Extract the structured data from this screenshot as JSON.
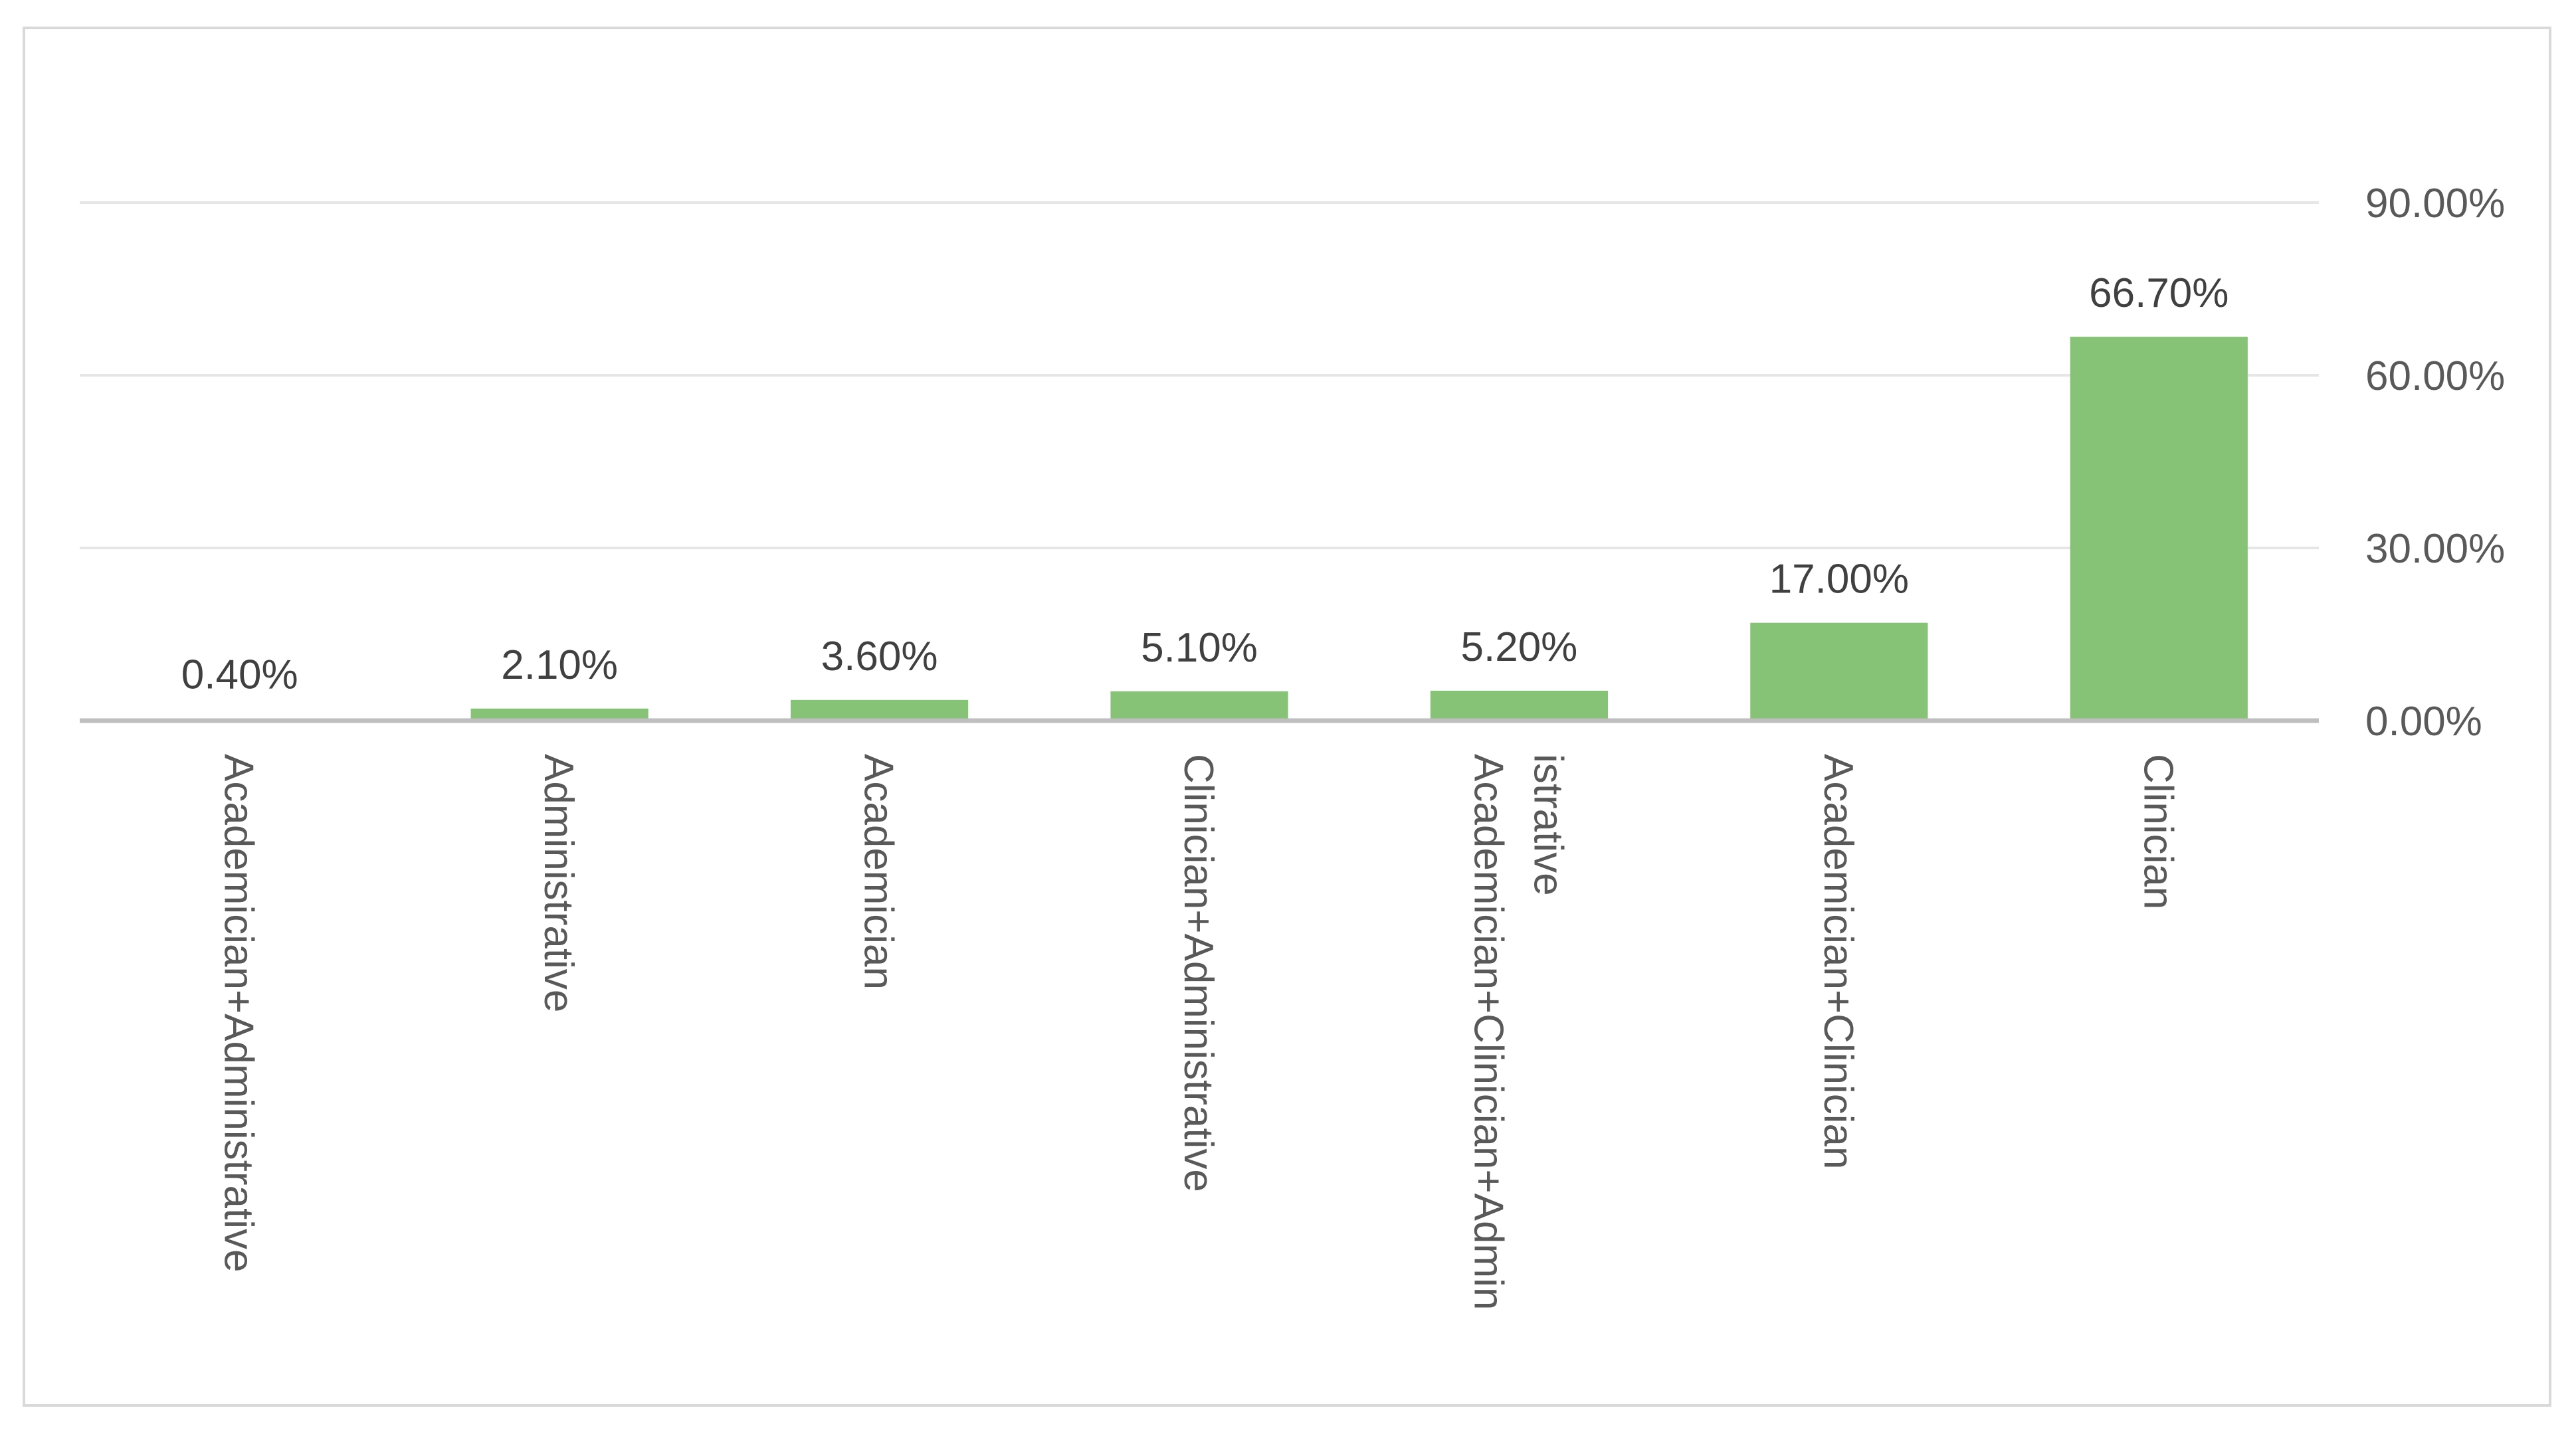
{
  "chart_data": {
    "type": "bar",
    "title": "",
    "xlabel": "",
    "ylabel": "",
    "categories": [
      "Academician+Administrative",
      "Administrative",
      "Academician",
      "Clinician+Administrative",
      "Academician+Clinician+Administrative",
      "Academician+Clinician",
      "Clinician"
    ],
    "category_label_lines": [
      [
        "Academician+Administrative"
      ],
      [
        "Administrative"
      ],
      [
        "Academician"
      ],
      [
        "Clinician+Administrative"
      ],
      [
        "Academician+Clinician+Admin",
        "istrative"
      ],
      [
        "Academician+Clinician"
      ],
      [
        "Clinician"
      ]
    ],
    "values": [
      0.4,
      2.1,
      3.6,
      5.1,
      5.2,
      17.0,
      66.7
    ],
    "data_labels": [
      "0.40%",
      "2.10%",
      "3.60%",
      "5.10%",
      "5.20%",
      "17.00%",
      "66.70%"
    ],
    "ylim": [
      0,
      90
    ],
    "y_ticks": [
      0,
      30,
      60,
      90
    ],
    "y_tick_labels": [
      "0.00%",
      "30.00%",
      "60.00%",
      "90.00%"
    ],
    "y_axis_side": "right",
    "grid": true,
    "legend": "none",
    "colors": {
      "bar": "#86c377",
      "gridline": "#e6e6e6",
      "axis": "#bfbfbf",
      "tick_text": "#595959",
      "label_text": "#404040",
      "frame": "#d9d9d9"
    }
  }
}
